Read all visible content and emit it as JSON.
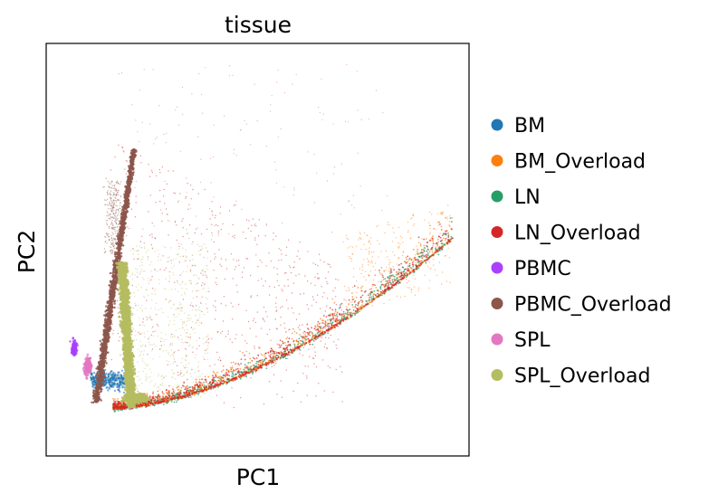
{
  "chart_data": {
    "type": "scatter",
    "title": "tissue",
    "xlabel": "PC1",
    "ylabel": "PC2",
    "x_ticks": [],
    "y_ticks": [],
    "grid": false,
    "legend_placement": "right outside",
    "series": [
      {
        "name": "BM",
        "color": "#1f77b4"
      },
      {
        "name": "BM_Overload",
        "color": "#ff7f0e"
      },
      {
        "name": "LN",
        "color": "#279e68"
      },
      {
        "name": "LN_Overload",
        "color": "#d62728"
      },
      {
        "name": "PBMC",
        "color": "#aa40fc"
      },
      {
        "name": "PBMC_Overload",
        "color": "#8c564b"
      },
      {
        "name": "SPL",
        "color": "#e377c2"
      },
      {
        "name": "SPL_Overload",
        "color": "#b5bd61"
      }
    ]
  }
}
